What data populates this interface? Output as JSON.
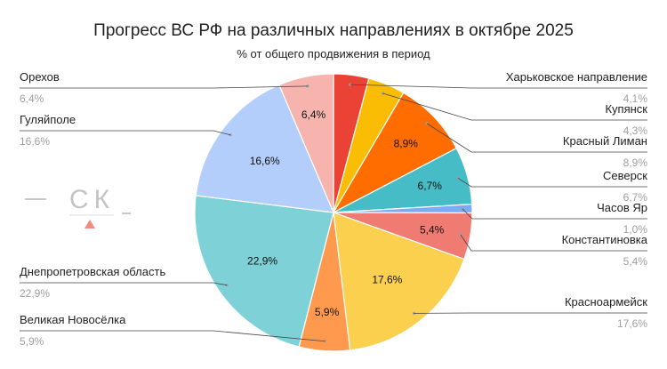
{
  "chart_data": {
    "type": "pie",
    "title": "Прогресс ВС РФ на различных направлениях в октябре 2025",
    "subtitle": "% от общего продвижения в период",
    "slices": [
      {
        "name": "Харьковское направление",
        "value": 4.1,
        "label": "4,1%",
        "color": "#ea4335",
        "side": "right"
      },
      {
        "name": "Купянск",
        "value": 4.3,
        "label": "4,3%",
        "color": "#fbbc04",
        "side": "right"
      },
      {
        "name": "Красный Лиман",
        "value": 8.9,
        "label": "8,9%",
        "color": "#ff6d01",
        "side": "right"
      },
      {
        "name": "Северск",
        "value": 6.7,
        "label": "6,7%",
        "color": "#46bdc6",
        "side": "right"
      },
      {
        "name": "Часов Яр",
        "value": 1.0,
        "label": "1,0%",
        "color": "#7baaf7",
        "side": "right"
      },
      {
        "name": "Константиновка",
        "value": 5.4,
        "label": "5,4%",
        "color": "#f07b72",
        "side": "right"
      },
      {
        "name": "Красноармейск",
        "value": 17.6,
        "label": "17,6%",
        "color": "#fcd04f",
        "side": "right"
      },
      {
        "name": "Великая Новосёлка",
        "value": 5.9,
        "label": "5,9%",
        "color": "#ff994d",
        "side": "left"
      },
      {
        "name": "Днепропетровская область",
        "value": 22.9,
        "label": "22,9%",
        "color": "#7ed1d7",
        "side": "left"
      },
      {
        "name": "Гуляйполе",
        "value": 16.6,
        "label": "16,6%",
        "color": "#b3cefb",
        "side": "left"
      },
      {
        "name": "Орехов",
        "value": 6.4,
        "label": "6,4%",
        "color": "#f7b4ae",
        "side": "left"
      }
    ],
    "inside_labels_for": [
      "Орехов",
      "Гуляйполе",
      "Днепропетровская область",
      "Великая Новосёлка",
      "Красноармейск",
      "Константиновка",
      "Северск",
      "Красный Лиман"
    ],
    "legend": "labels-outside"
  },
  "logo": {
    "text": "СК"
  }
}
